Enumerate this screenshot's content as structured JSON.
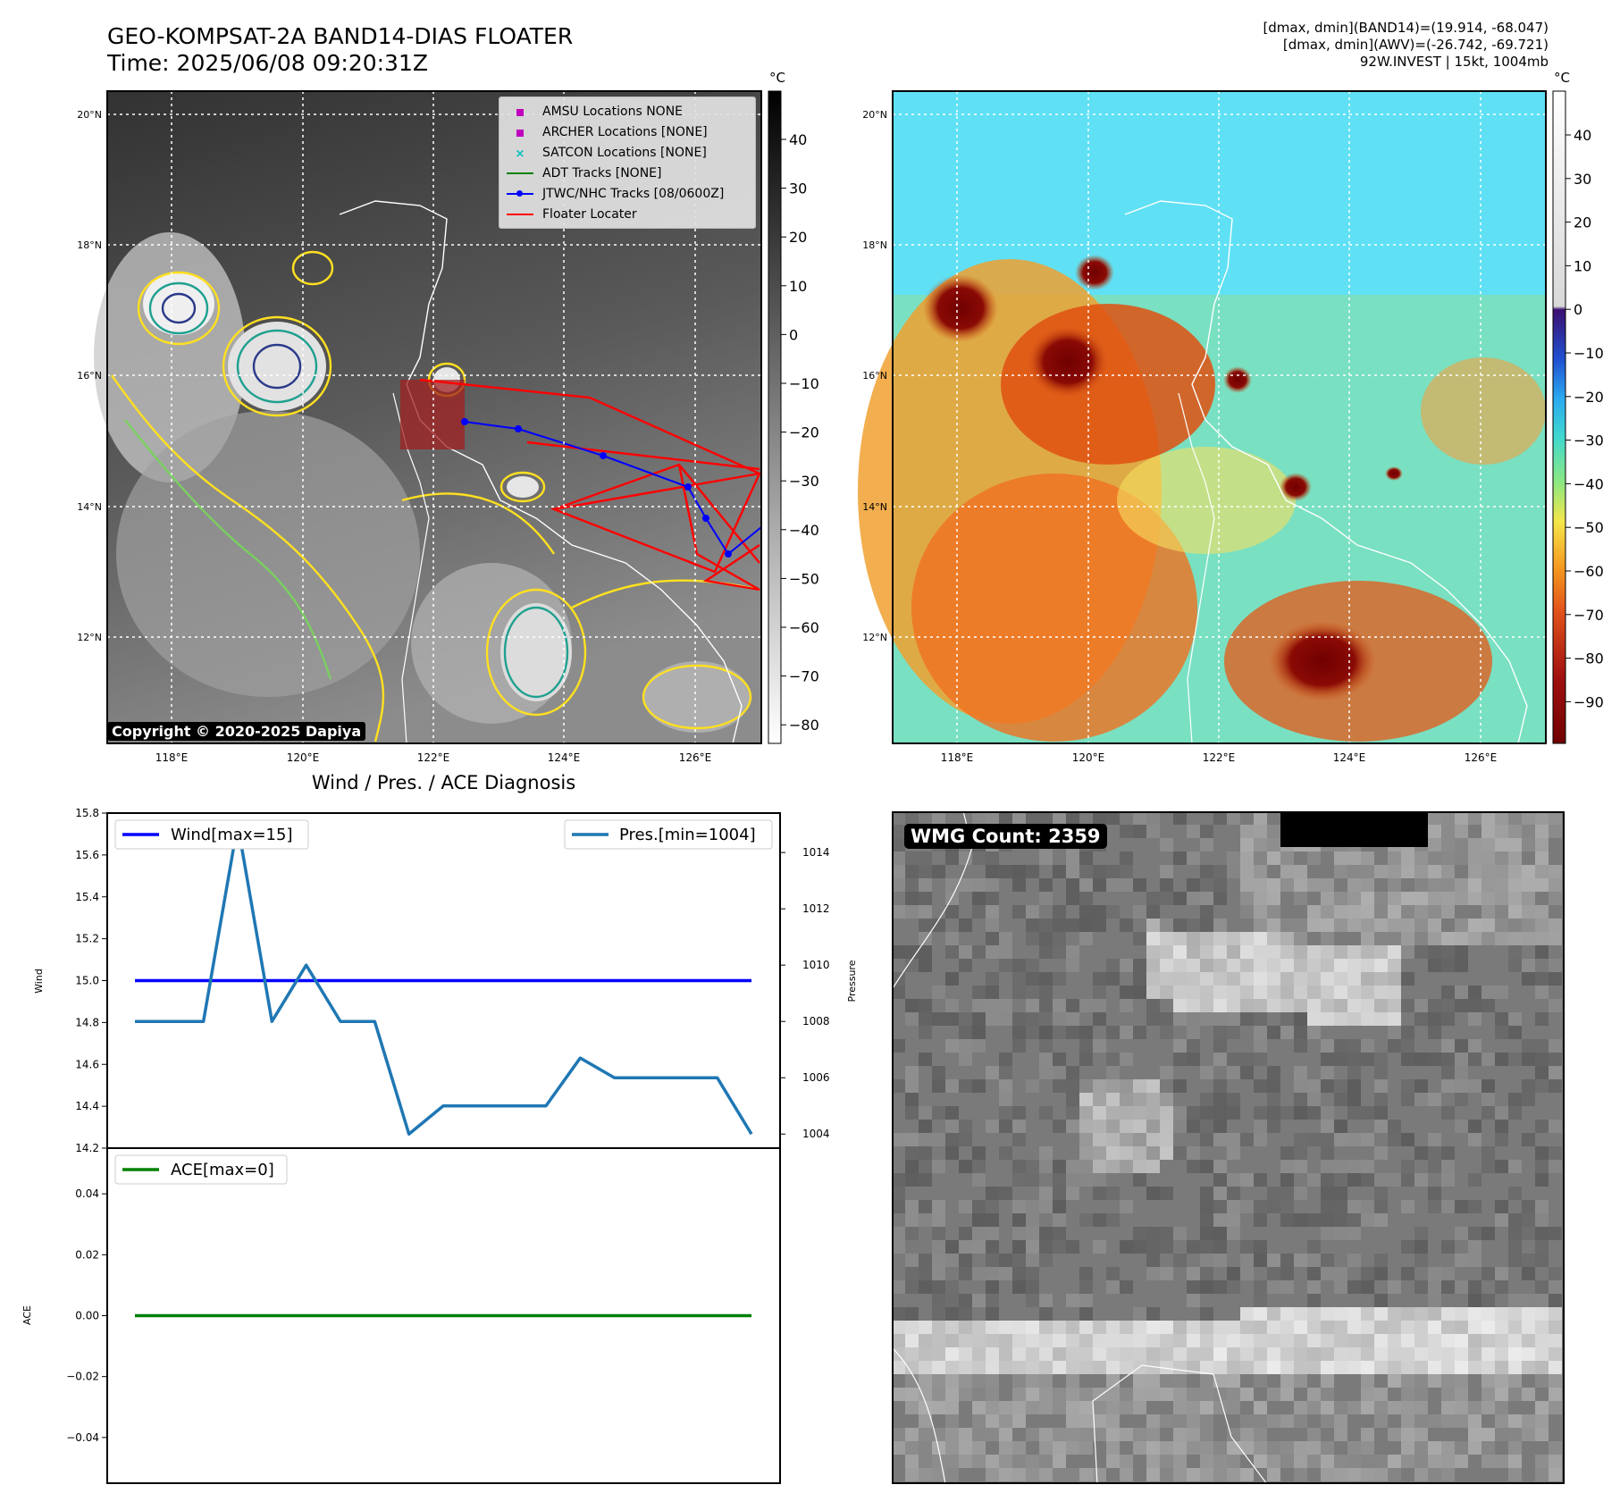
{
  "header": {
    "title": "GEO-KOMPSAT-2A BAND14-DIAS FLOATER",
    "time": "Time: 2025/06/08 09:20:31Z",
    "stats": [
      "[dmax, dmin](BAND14)=(19.914, -68.047)",
      "[dmax, dmin](AWV)=(-26.742, -69.721)",
      "92W.INVEST | 15kt, 1004mb"
    ]
  },
  "map_axes": {
    "lat_ticks": [
      "20°N",
      "18°N",
      "16°N",
      "14°N",
      "12°N"
    ],
    "lon_ticks": [
      "118°E",
      "120°E",
      "122°E",
      "124°E",
      "126°E"
    ]
  },
  "ir_panel": {
    "copyright": "Copyright © 2020-2025 Dapiya",
    "colorbar_unit": "°C",
    "colorbar_ticks": [
      "40",
      "30",
      "20",
      "10",
      "0",
      "−10",
      "−20",
      "−30",
      "−40",
      "−50",
      "−60",
      "−70",
      "−80"
    ],
    "legend": [
      {
        "label": "AMSU Locations NONE",
        "marker": "square",
        "color": "#bf00bf"
      },
      {
        "label": "ARCHER Locations [NONE]",
        "marker": "square",
        "color": "#bf00bf"
      },
      {
        "label": "SATCON Locations [NONE]",
        "marker": "x",
        "color": "#00bfbf"
      },
      {
        "label": "ADT Tracks [NONE]",
        "marker": "line",
        "color": "#008000"
      },
      {
        "label": "JTWC/NHC Tracks [08/0600Z]",
        "marker": "line-dot",
        "color": "#0000ff"
      },
      {
        "label": "Floater Locater",
        "marker": "line",
        "color": "#ff0000"
      }
    ]
  },
  "wv_panel": {
    "colorbar_unit": "°C",
    "colorbar_ticks": [
      "40",
      "30",
      "20",
      "10",
      "0",
      "−10",
      "−20",
      "−30",
      "−40",
      "−50",
      "−60",
      "−70",
      "−80",
      "−90"
    ]
  },
  "wmg_panel": {
    "count_label": "WMG Count: 2359"
  },
  "chart_data": [
    {
      "type": "line",
      "title": "Wind / Pres. / ACE Diagnosis",
      "ylabel": "Wind",
      "y2label": "Pressure",
      "ylim": [
        14.2,
        15.8
      ],
      "y2lim": [
        1003.5,
        1015.4
      ],
      "yticks": [
        "15.8",
        "15.6",
        "15.4",
        "15.2",
        "15.0",
        "14.8",
        "14.6",
        "14.4",
        "14.2"
      ],
      "y2ticks": [
        "1014",
        "1012",
        "1010",
        "1008",
        "1006",
        "1004"
      ],
      "series": [
        {
          "name": "Wind[max=15]",
          "axis": "left",
          "color": "#0000ff",
          "values": [
            15,
            15,
            15,
            15,
            15,
            15,
            15,
            15,
            15,
            15,
            15,
            15,
            15,
            15,
            15,
            15,
            15,
            15,
            15
          ]
        },
        {
          "name": "Pres.[min=1004]",
          "axis": "right",
          "color": "#1f77b4",
          "values": [
            1008,
            1008,
            1008,
            1015,
            1008,
            1010,
            1008,
            1008,
            1004,
            1005,
            1005,
            1005,
            1005,
            1006.7,
            1006,
            1006,
            1006,
            1006,
            1004
          ]
        }
      ]
    },
    {
      "type": "line",
      "ylabel": "ACE",
      "ylim": [
        -0.055,
        0.055
      ],
      "yticks": [
        "0.04",
        "0.02",
        "0.00",
        "−0.02",
        "−0.04"
      ],
      "series": [
        {
          "name": "ACE[max=0]",
          "color": "#008000",
          "values": [
            0,
            0,
            0,
            0,
            0,
            0,
            0,
            0,
            0,
            0,
            0,
            0,
            0,
            0,
            0,
            0,
            0,
            0,
            0
          ]
        }
      ]
    }
  ]
}
